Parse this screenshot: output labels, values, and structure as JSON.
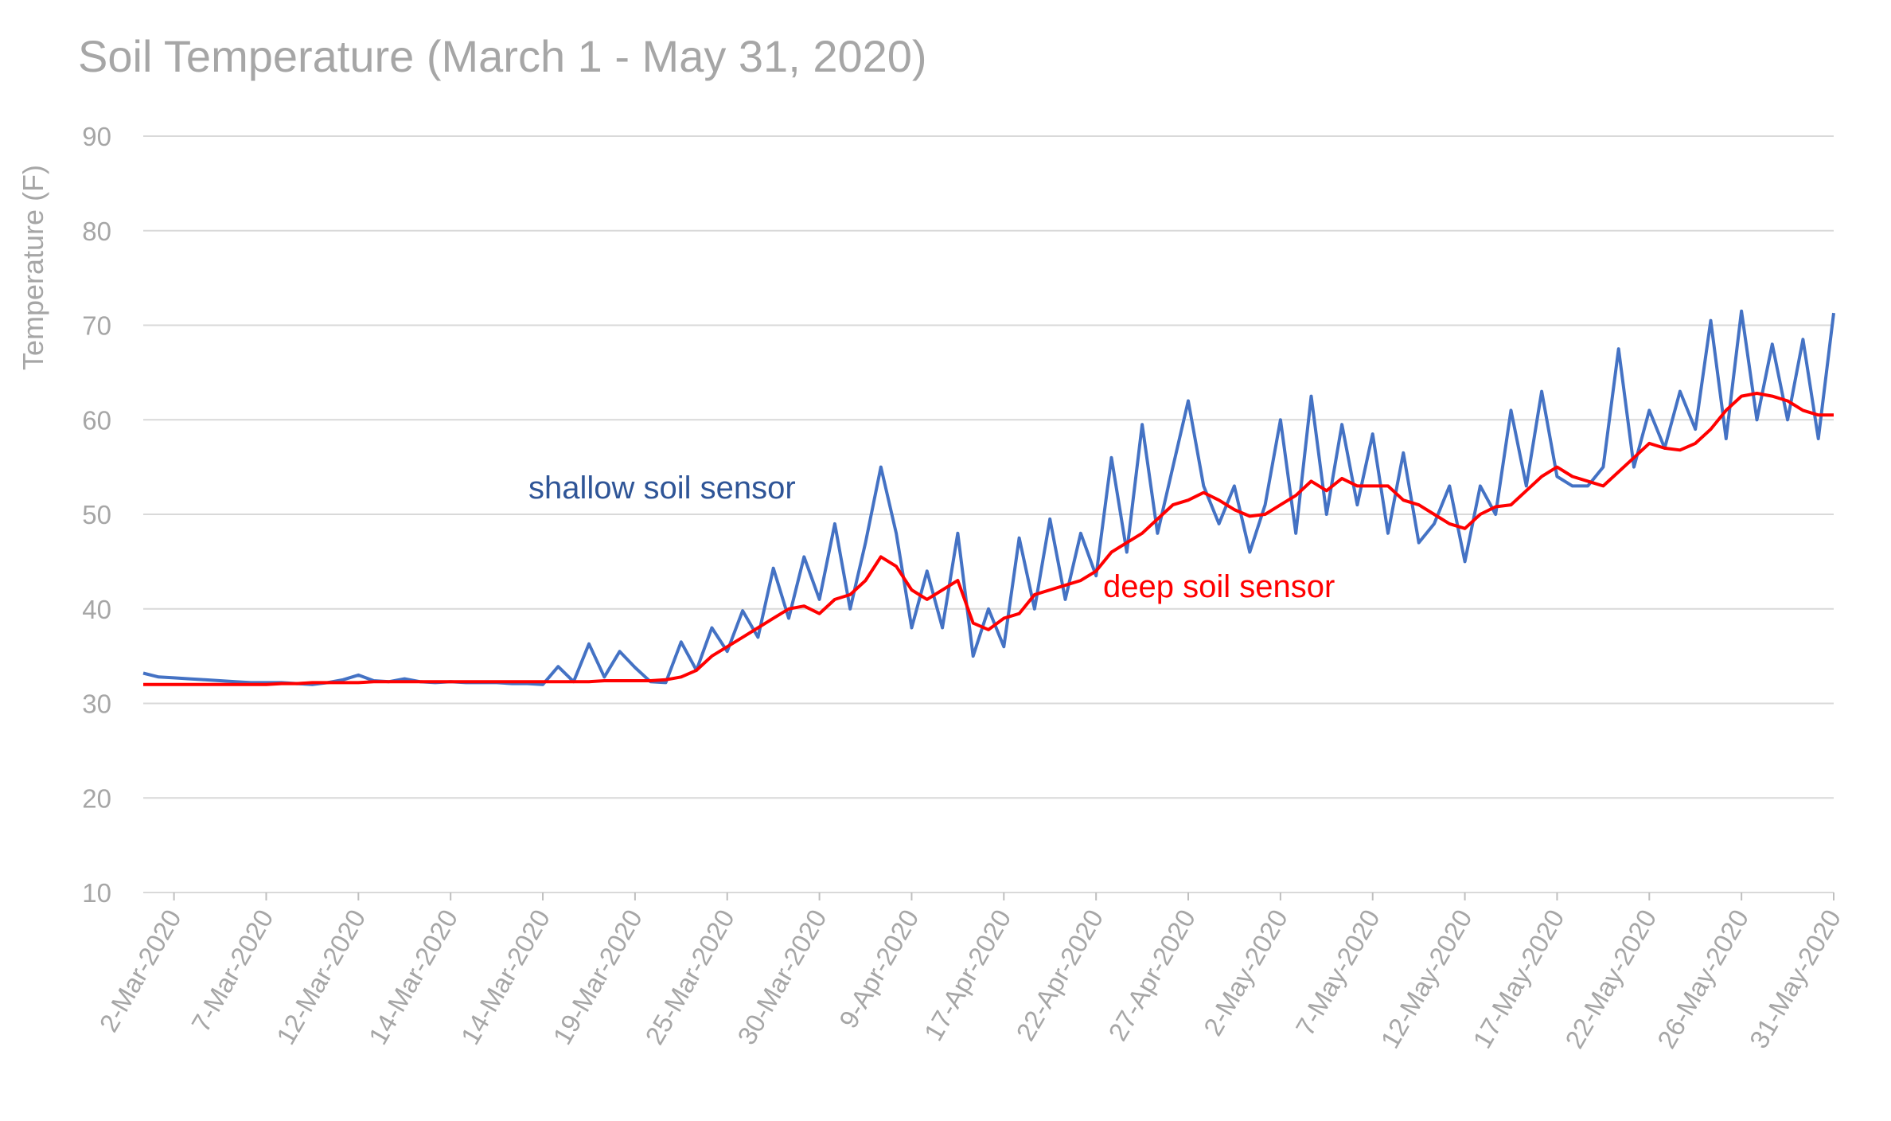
{
  "chart_data": {
    "type": "line",
    "title": "Soil Temperature (March 1 - May 31, 2020)",
    "y_label": "Temperature (F)",
    "ylim": [
      10,
      90
    ],
    "yticks": [
      10,
      20,
      30,
      40,
      50,
      60,
      70,
      80,
      90
    ],
    "grid": true,
    "categories": [
      null,
      null,
      "2-Mar-2020",
      null,
      null,
      null,
      null,
      null,
      "7-Mar-2020",
      null,
      null,
      null,
      null,
      null,
      "12-Mar-2020",
      null,
      null,
      null,
      null,
      null,
      "14-Mar-2020",
      null,
      null,
      null,
      null,
      null,
      "14-Mar-2020",
      null,
      null,
      null,
      null,
      null,
      "19-Mar-2020",
      null,
      null,
      null,
      null,
      null,
      "25-Mar-2020",
      null,
      null,
      null,
      null,
      null,
      "30-Mar-2020",
      null,
      null,
      null,
      null,
      null,
      "9-Apr-2020",
      null,
      null,
      null,
      null,
      null,
      "17-Apr-2020",
      null,
      null,
      null,
      null,
      null,
      "22-Apr-2020",
      null,
      null,
      null,
      null,
      null,
      "27-Apr-2020",
      null,
      null,
      null,
      null,
      null,
      "2-May-2020",
      null,
      null,
      null,
      null,
      null,
      "7-May-2020",
      null,
      null,
      null,
      null,
      null,
      "12-May-2020",
      null,
      null,
      null,
      null,
      null,
      "17-May-2020",
      null,
      null,
      null,
      null,
      null,
      "22-May-2020",
      null,
      null,
      null,
      null,
      null,
      "26-May-2020",
      null,
      null,
      null,
      null,
      null,
      "31-May-2020"
    ],
    "series": [
      {
        "name": "shallow soil sensor",
        "color": "#4472c4",
        "label_color": "#2f5597",
        "values": [
          33.2,
          32.8,
          32.7,
          32.6,
          32.5,
          32.4,
          32.3,
          32.2,
          32.2,
          32.2,
          32.1,
          32.0,
          32.2,
          32.5,
          33.0,
          32.4,
          32.3,
          32.6,
          32.3,
          32.2,
          32.3,
          32.2,
          32.2,
          32.2,
          32.1,
          32.1,
          32.0,
          33.9,
          32.3,
          36.3,
          32.8,
          35.5,
          33.8,
          32.3,
          32.2,
          36.5,
          33.5,
          38,
          35.5,
          39.8,
          37,
          44.3,
          39,
          45.5,
          41,
          49,
          40,
          47,
          55,
          48,
          38,
          44,
          38,
          48,
          35,
          40,
          36,
          47.5,
          40,
          49.5,
          41,
          48,
          43.5,
          56,
          46,
          59.5,
          48,
          55,
          62,
          53,
          49,
          53,
          46,
          51,
          60,
          48,
          62.5,
          50,
          59.5,
          51,
          58.5,
          48,
          56.5,
          47,
          49,
          53,
          45,
          53,
          50,
          61,
          53,
          63,
          54,
          53,
          53,
          55,
          67.5,
          55,
          61,
          57,
          63,
          59,
          70.5,
          58,
          71.5,
          60,
          68,
          60,
          68.5,
          58,
          71.3
        ]
      },
      {
        "name": "deep soil sensor",
        "color": "#ff0000",
        "label_color": "#ff0000",
        "values": [
          32.0,
          32.0,
          32.0,
          32.0,
          32.0,
          32.0,
          32.0,
          32.0,
          32.0,
          32.1,
          32.1,
          32.2,
          32.2,
          32.2,
          32.2,
          32.3,
          32.3,
          32.3,
          32.3,
          32.3,
          32.3,
          32.3,
          32.3,
          32.3,
          32.3,
          32.3,
          32.3,
          32.3,
          32.3,
          32.3,
          32.4,
          32.4,
          32.4,
          32.4,
          32.5,
          32.8,
          33.5,
          35,
          36,
          37,
          38,
          39,
          40,
          40.3,
          39.5,
          41,
          41.5,
          43,
          45.5,
          44.5,
          42,
          41,
          42,
          43,
          38.5,
          37.8,
          39,
          39.5,
          41.5,
          42,
          42.5,
          43,
          44,
          46,
          47,
          48,
          49.5,
          51,
          51.5,
          52.3,
          51.5,
          50.5,
          49.8,
          50,
          51,
          52,
          53.5,
          52.5,
          53.8,
          53,
          53,
          53,
          51.5,
          51,
          50,
          49,
          48.5,
          50,
          50.8,
          51,
          52.5,
          54,
          55,
          54,
          53.5,
          53,
          54.5,
          56,
          57.5,
          57,
          56.8,
          57.5,
          59,
          61,
          62.5,
          62.8,
          62.5,
          62,
          61,
          60.5,
          60.5
        ]
      }
    ]
  }
}
